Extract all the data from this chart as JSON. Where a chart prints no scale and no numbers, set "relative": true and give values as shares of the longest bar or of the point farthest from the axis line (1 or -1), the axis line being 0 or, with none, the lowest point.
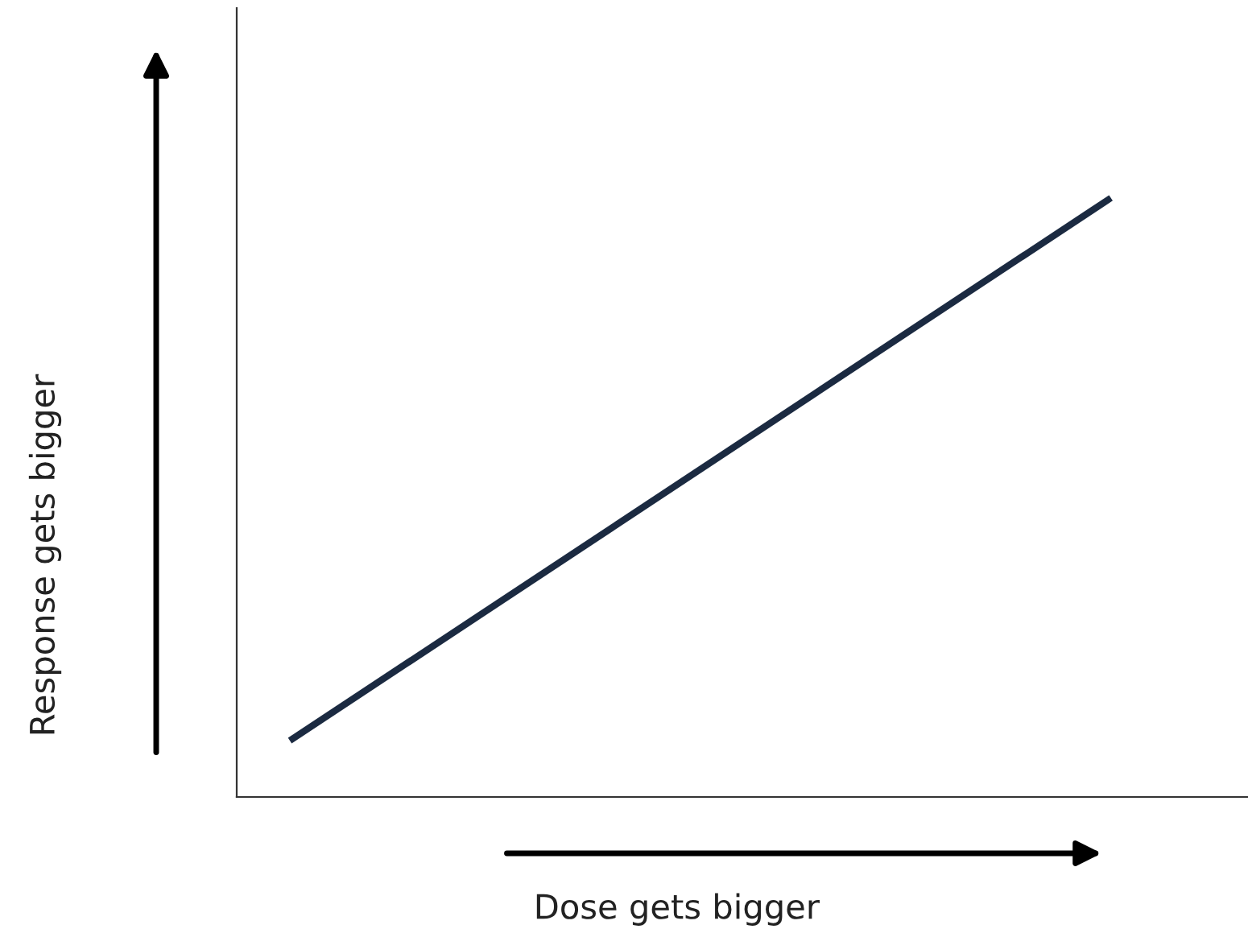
{
  "chart_data": {
    "type": "line",
    "xlabel": "Dose gets bigger",
    "annotations": [
      "Response gets bigger"
    ],
    "relative": true,
    "categories": [
      null,
      null
    ],
    "series": [
      {
        "color": "#1b2a41",
        "values": [
          0.094,
          1
        ]
      }
    ]
  }
}
